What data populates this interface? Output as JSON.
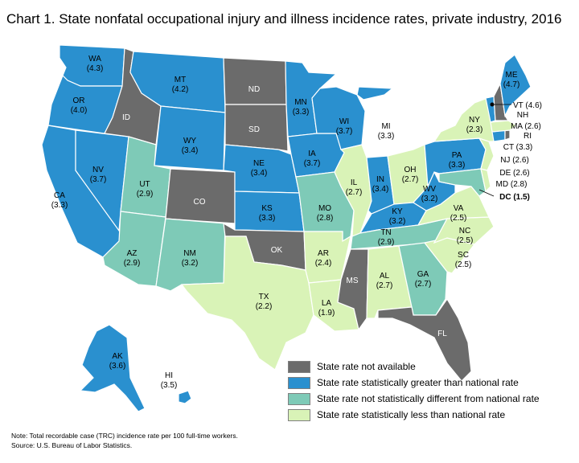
{
  "title": "Chart 1. State nonfatal occupational injury and illness incidence rates, private industry, 2016",
  "colors": {
    "na": "#6b6b6b",
    "greater": "#2a90cf",
    "nodiff": "#7ecab7",
    "less": "#d9f3b7"
  },
  "legend": [
    {
      "key": "na",
      "label": "State rate not available"
    },
    {
      "key": "greater",
      "label": "State rate statistically greater than national rate"
    },
    {
      "key": "nodiff",
      "label": "State rate not statistically different from national rate"
    },
    {
      "key": "less",
      "label": "State rate statistically less than national rate"
    }
  ],
  "states": {
    "WA": {
      "name": "WA",
      "rate": "(4.3)",
      "cat": "greater"
    },
    "OR": {
      "name": "OR",
      "rate": "(4.0)",
      "cat": "greater"
    },
    "CA": {
      "name": "CA",
      "rate": "(3.3)",
      "cat": "greater"
    },
    "NV": {
      "name": "NV",
      "rate": "(3.7)",
      "cat": "greater"
    },
    "ID": {
      "name": "ID",
      "rate": "",
      "cat": "na"
    },
    "MT": {
      "name": "MT",
      "rate": "(4.2)",
      "cat": "greater"
    },
    "WY": {
      "name": "WY",
      "rate": "(3.4)",
      "cat": "greater"
    },
    "UT": {
      "name": "UT",
      "rate": "(2.9)",
      "cat": "nodiff"
    },
    "AZ": {
      "name": "AZ",
      "rate": "(2.9)",
      "cat": "nodiff"
    },
    "CO": {
      "name": "CO",
      "rate": "",
      "cat": "na"
    },
    "NM": {
      "name": "NM",
      "rate": "(3.2)",
      "cat": "nodiff"
    },
    "ND": {
      "name": "ND",
      "rate": "",
      "cat": "na"
    },
    "SD": {
      "name": "SD",
      "rate": "",
      "cat": "na"
    },
    "NE": {
      "name": "NE",
      "rate": "(3.4)",
      "cat": "greater"
    },
    "KS": {
      "name": "KS",
      "rate": "(3.3)",
      "cat": "greater"
    },
    "OK": {
      "name": "OK",
      "rate": "",
      "cat": "na"
    },
    "TX": {
      "name": "TX",
      "rate": "(2.2)",
      "cat": "less"
    },
    "MN": {
      "name": "MN",
      "rate": "(3.3)",
      "cat": "greater"
    },
    "IA": {
      "name": "IA",
      "rate": "(3.7)",
      "cat": "greater"
    },
    "MO": {
      "name": "MO",
      "rate": "(2.8)",
      "cat": "nodiff"
    },
    "AR": {
      "name": "AR",
      "rate": "(2.4)",
      "cat": "less"
    },
    "LA": {
      "name": "LA",
      "rate": "(1.9)",
      "cat": "less"
    },
    "WI": {
      "name": "WI",
      "rate": "(3.7)",
      "cat": "greater"
    },
    "IL": {
      "name": "IL",
      "rate": "(2.7)",
      "cat": "less"
    },
    "MI": {
      "name": "MI",
      "rate": "(3.3)",
      "cat": "greater"
    },
    "IN": {
      "name": "IN",
      "rate": "(3.4)",
      "cat": "greater"
    },
    "OH": {
      "name": "OH",
      "rate": "(2.7)",
      "cat": "less"
    },
    "KY": {
      "name": "KY",
      "rate": "(3.2)",
      "cat": "greater"
    },
    "TN": {
      "name": "TN",
      "rate": "(2.9)",
      "cat": "nodiff"
    },
    "MS": {
      "name": "MS",
      "rate": "",
      "cat": "na"
    },
    "AL": {
      "name": "AL",
      "rate": "(2.7)",
      "cat": "less"
    },
    "GA": {
      "name": "GA",
      "rate": "(2.7)",
      "cat": "nodiff"
    },
    "FL": {
      "name": "FL",
      "rate": "",
      "cat": "na"
    },
    "SC": {
      "name": "SC",
      "rate": "(2.5)",
      "cat": "less"
    },
    "NC": {
      "name": "NC",
      "rate": "(2.5)",
      "cat": "less"
    },
    "VA": {
      "name": "VA",
      "rate": "(2.5)",
      "cat": "less"
    },
    "WV": {
      "name": "WV",
      "rate": "(3.2)",
      "cat": "greater"
    },
    "PA": {
      "name": "PA",
      "rate": "(3.3)",
      "cat": "greater"
    },
    "NY": {
      "name": "NY",
      "rate": "(2.3)",
      "cat": "less"
    },
    "VT": {
      "name": "VT",
      "rate": "(4.6)",
      "cat": "greater"
    },
    "NH": {
      "name": "NH",
      "rate": "",
      "cat": "na"
    },
    "ME": {
      "name": "ME",
      "rate": "(4.7)",
      "cat": "greater"
    },
    "MA": {
      "name": "MA",
      "rate": "(2.6)",
      "cat": "less"
    },
    "RI": {
      "name": "RI",
      "rate": "",
      "cat": "na"
    },
    "CT": {
      "name": "CT",
      "rate": "(3.3)",
      "cat": "greater"
    },
    "NJ": {
      "name": "NJ",
      "rate": "(2.6)",
      "cat": "less"
    },
    "DE": {
      "name": "DE",
      "rate": "(2.6)",
      "cat": "less"
    },
    "MD": {
      "name": "MD",
      "rate": "(2.8)",
      "cat": "nodiff"
    },
    "DC": {
      "name": "DC",
      "rate": "(1.5)",
      "cat": "less"
    },
    "AK": {
      "name": "AK",
      "rate": "(3.6)",
      "cat": "greater"
    },
    "HI": {
      "name": "HI",
      "rate": "(3.5)",
      "cat": "greater"
    }
  },
  "note": "Note: Total recordable case (TRC) incidence rate per 100 full-time workers.",
  "source": "Source: U.S. Bureau of Labor Statistics."
}
